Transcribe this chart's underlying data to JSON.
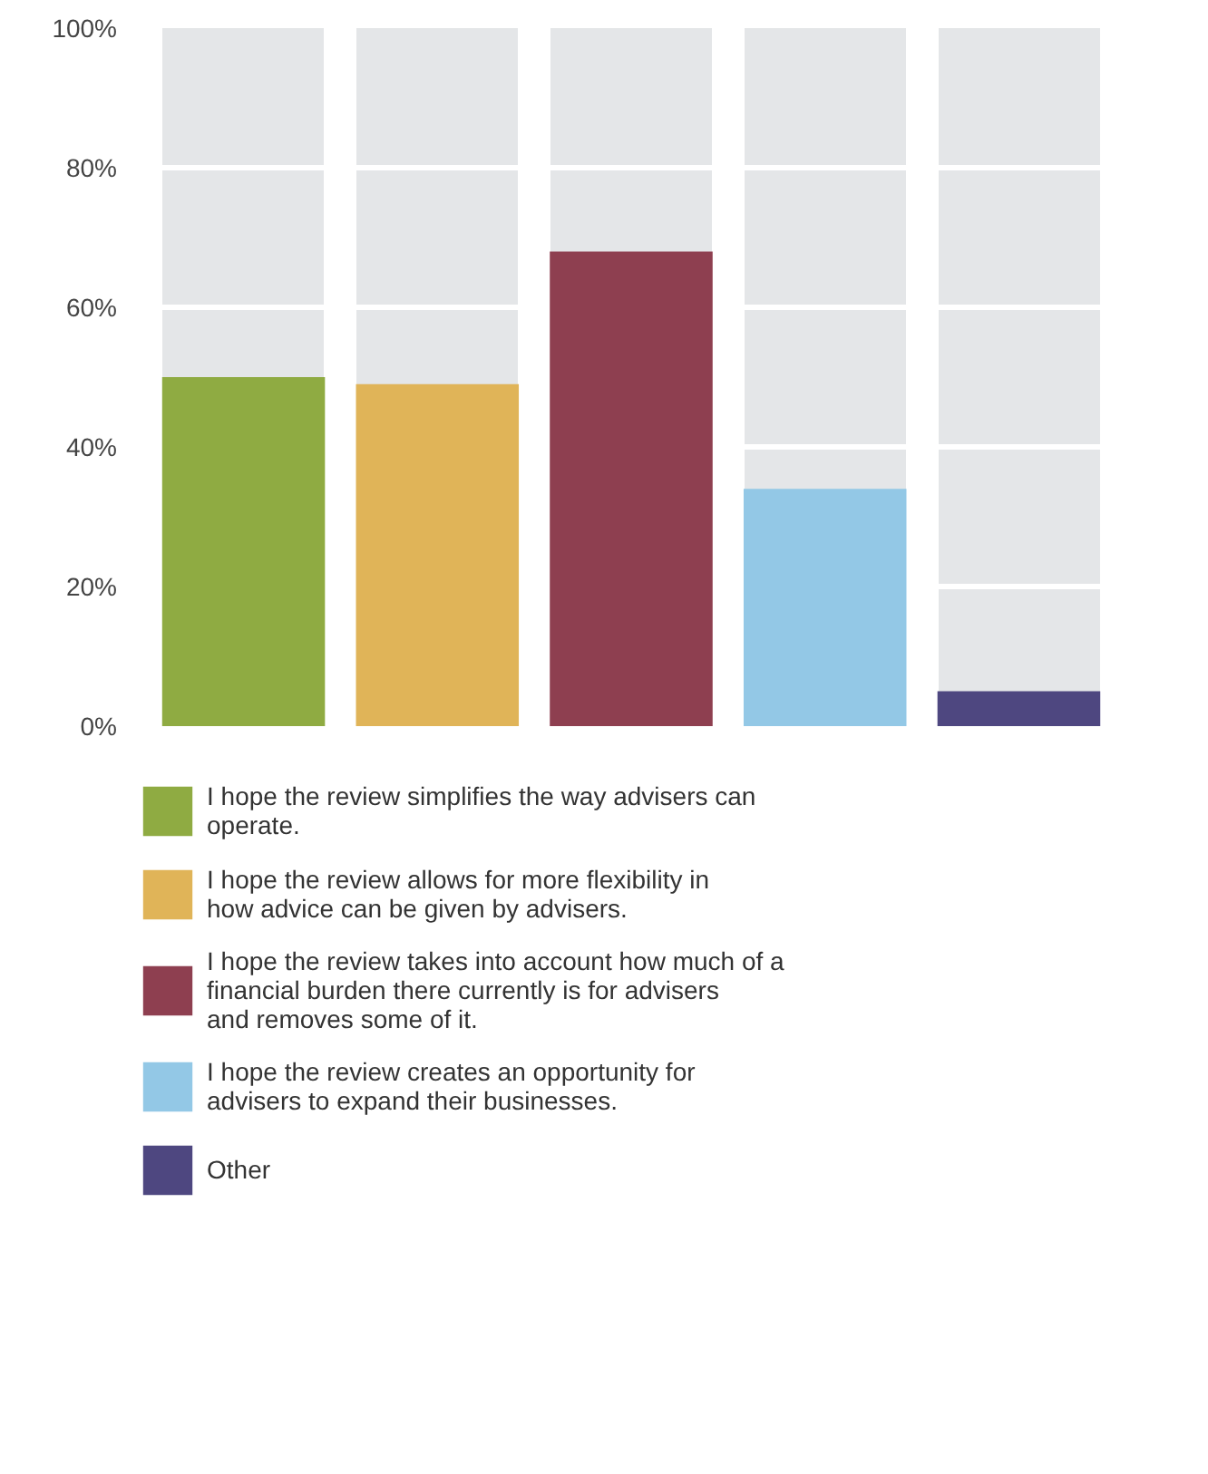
{
  "chart_data": {
    "type": "bar",
    "categories": [
      null,
      null,
      null,
      null,
      null
    ],
    "series": [
      {
        "name": "I hope the review simplifies the way advisers can operate.",
        "color": "#8fab42",
        "values": [
          50,
          null,
          null,
          null,
          null
        ]
      },
      {
        "name": "I hope the review allows for more flexibility in how advice can be given by advisers.",
        "color": "#e0b458",
        "values": [
          null,
          49,
          null,
          null,
          null
        ]
      },
      {
        "name": "I hope the review takes into account how much of a financial burden there currently is for advisers and removes some of it.",
        "color": "#8e3f50",
        "values": [
          null,
          null,
          68,
          null,
          null
        ]
      },
      {
        "name": "I hope the review creates an opportunity for advisers to expand their businesses.",
        "color": "#93c8e6",
        "values": [
          null,
          null,
          null,
          34,
          null
        ]
      },
      {
        "name": "Other",
        "color": "#4e4780",
        "values": [
          null,
          null,
          null,
          null,
          5
        ]
      }
    ],
    "ylim": [
      0,
      100
    ],
    "yticks": [
      {
        "value": 0,
        "label": "0%"
      },
      {
        "value": 20,
        "label": "20%"
      },
      {
        "value": 40,
        "label": "40%"
      },
      {
        "value": 60,
        "label": "60%"
      },
      {
        "value": 80,
        "label": "80%"
      },
      {
        "value": 100,
        "label": "100%"
      }
    ],
    "grid": "y",
    "legend": "bottom",
    "tick_labels": "y"
  }
}
